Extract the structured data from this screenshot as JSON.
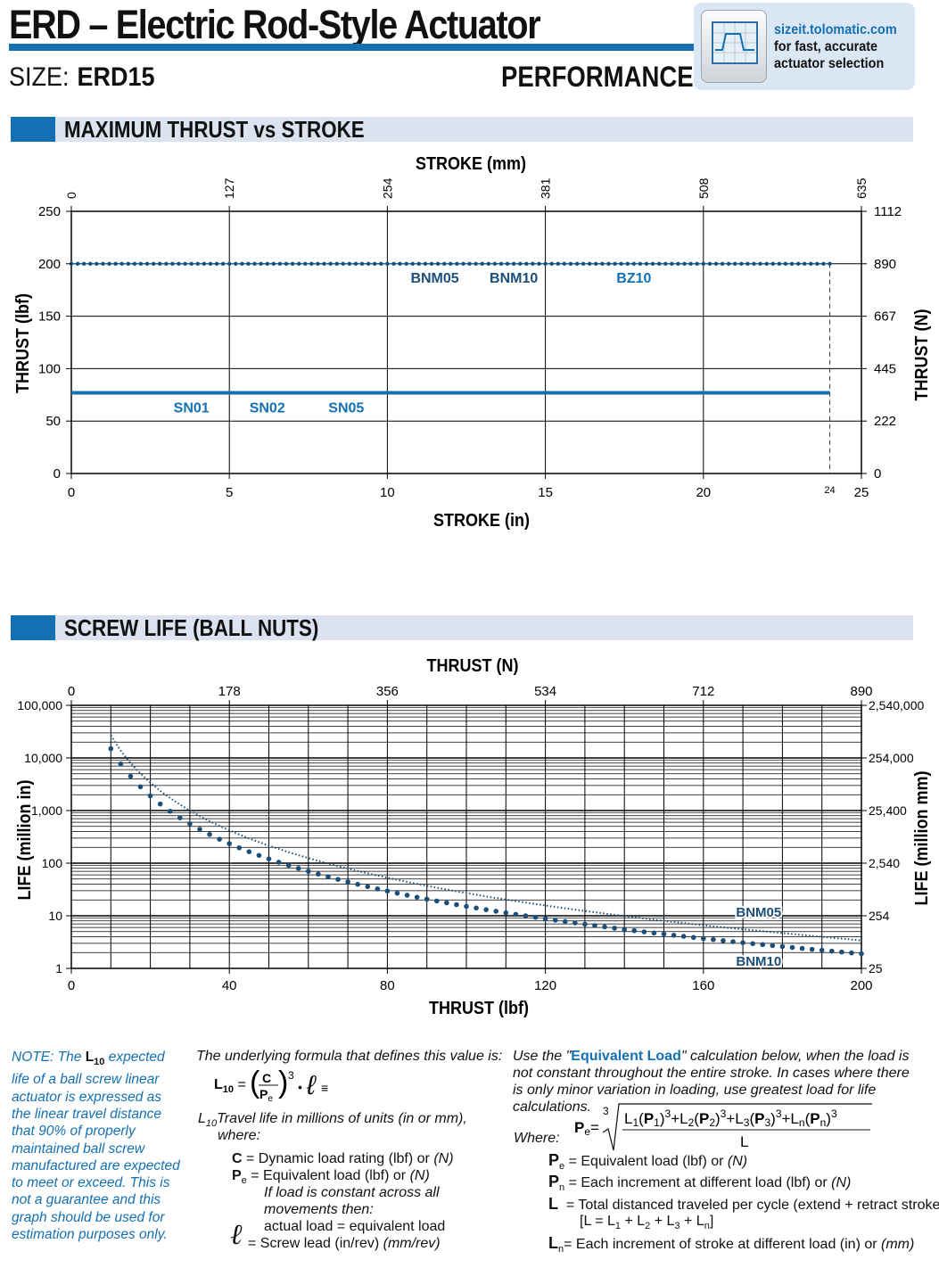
{
  "header": {
    "title": "ERD – Electric Rod-Style Actuator",
    "size_label": "SIZE:",
    "size_value": "ERD15",
    "section": "PERFORMANCE",
    "sizeit_url": "sizeit.tolomatic.com",
    "sizeit_line1": "for fast, accurate",
    "sizeit_line2": "actuator selection"
  },
  "sections": {
    "thrust": "MAXIMUM THRUST vs STROKE",
    "life": "SCREW LIFE (BALL NUTS)"
  },
  "colors": {
    "accent": "#1370b3",
    "dark_series": "#1b4f7a",
    "section_bg": "#dbe3f1"
  },
  "chart_data": [
    {
      "type": "line",
      "title": "MAXIMUM THRUST vs STROKE",
      "xlabel": "STROKE (in)",
      "x2label": "STROKE (mm)",
      "ylabel": "THRUST (lbf)",
      "y2label": "THRUST (N)",
      "xlim": [
        0,
        25
      ],
      "ylim": [
        0,
        250
      ],
      "x_ticks": [
        "0",
        "5",
        "10",
        "15",
        "20",
        "25"
      ],
      "x_extra_tick": "24",
      "x2_ticks": [
        "0",
        "127",
        "254",
        "381",
        "508",
        "635"
      ],
      "y_ticks": [
        "0",
        "50",
        "100",
        "150",
        "200",
        "250"
      ],
      "y2_ticks": [
        "0",
        "222",
        "445",
        "667",
        "890",
        "1112"
      ],
      "grid": true,
      "series": [
        {
          "name": "BNM05",
          "x": [
            0,
            24
          ],
          "values": [
            200,
            200
          ]
        },
        {
          "name": "BNM10",
          "x": [
            0,
            24
          ],
          "values": [
            200,
            200
          ]
        },
        {
          "name": "BZ10",
          "x": [
            0,
            24
          ],
          "values": [
            200,
            200
          ]
        },
        {
          "name": "SN01",
          "x": [
            0,
            24
          ],
          "values": [
            77,
            77
          ]
        },
        {
          "name": "SN02",
          "x": [
            0,
            24
          ],
          "values": [
            77,
            77
          ]
        },
        {
          "name": "SN05",
          "x": [
            0,
            24
          ],
          "values": [
            77,
            77
          ]
        }
      ],
      "labels": {
        "BNM05": "BNM05",
        "BNM10": "BNM10",
        "BZ10": "BZ10",
        "SN01": "SN01",
        "SN02": "SN02",
        "SN05": "SN05"
      }
    },
    {
      "type": "line",
      "title": "SCREW LIFE (BALL NUTS)",
      "xlabel": "THRUST (lbf)",
      "x2label": "THRUST (N)",
      "ylabel": "LIFE (million in)",
      "y2label": "LIFE (million mm)",
      "xlim": [
        0,
        200
      ],
      "ylim": [
        1,
        100000
      ],
      "log_y": true,
      "x_ticks": [
        "0",
        "40",
        "80",
        "120",
        "160",
        "200"
      ],
      "x2_ticks": [
        "0",
        "178",
        "356",
        "534",
        "712",
        "890"
      ],
      "y_ticks": [
        "1",
        "10",
        "100",
        "1,000",
        "10,000",
        "100,000"
      ],
      "y2_ticks": [
        "25",
        "254",
        "2,540",
        "25,400",
        "254,000",
        "2,540,000"
      ],
      "grid": true,
      "series": [
        {
          "name": "BNM05",
          "x": [
            10,
            20,
            30,
            40,
            60,
            80,
            100,
            120,
            140,
            160,
            180,
            200
          ],
          "values": [
            27000,
            3400,
            1000,
            420,
            125,
            53,
            27,
            15.7,
            9.9,
            6.6,
            4.7,
            3.4
          ]
        },
        {
          "name": "BNM10",
          "x": [
            10,
            20,
            30,
            40,
            60,
            80,
            100,
            120,
            140,
            160,
            180,
            200
          ],
          "values": [
            15000,
            1900,
            560,
            235,
            70,
            29.5,
            15.1,
            8.8,
            5.5,
            3.7,
            2.6,
            1.9
          ]
        }
      ],
      "labels": {
        "BNM05": "BNM05",
        "BNM10": "BNM10"
      }
    }
  ],
  "notes": {
    "note_prefix": "NOTE: The",
    "note_l": "L",
    "note_sub": "10",
    "note_rest": "expected life of a ball screw linear actuator is expressed as the linear travel distance that 90% of properly maintained ball screw manufactured are expected to meet or exceed. This is not a guarantee and this graph should be used for estimation purposes only.",
    "formula_intro": "The underlying formula that defines this value is:",
    "l10_desc_a": "Travel life in millions of units (in or mm),",
    "l10_desc_b": "where:",
    "c_def": "= Dynamic load rating (lbf) or",
    "c_unit": "(N)",
    "pe_def": "= Equivalent load (lbf) or",
    "pe_unit": "(N)",
    "constant_a": "If load is constant across all",
    "constant_b": "movements then:",
    "actual_eq": "actual load = equivalent load",
    "lead_def": "= Screw lead (in/rev)",
    "lead_unit": "(mm/rev)",
    "equiv_intro_a": "Use the \"",
    "equiv_link": "Equivalent Load",
    "equiv_intro_b": "\" calculation below, when the load is not constant throughout the entire stroke. In cases where there is only minor variation in loading, use greatest load for life calculations.",
    "where": "Where:",
    "pe_def2": "= Equivalent load (lbf) or",
    "pe_unit2": "(N)",
    "pn_def": "= Each increment at different load (lbf) or",
    "pn_unit": "(N)",
    "l_def_a": "= Total distanced traveled per cycle (extend + retract stroke)",
    "l_def_b": "[L = L",
    "ln_def": "= Each increment of stroke at different load (in) or",
    "ln_unit": "(mm)"
  }
}
